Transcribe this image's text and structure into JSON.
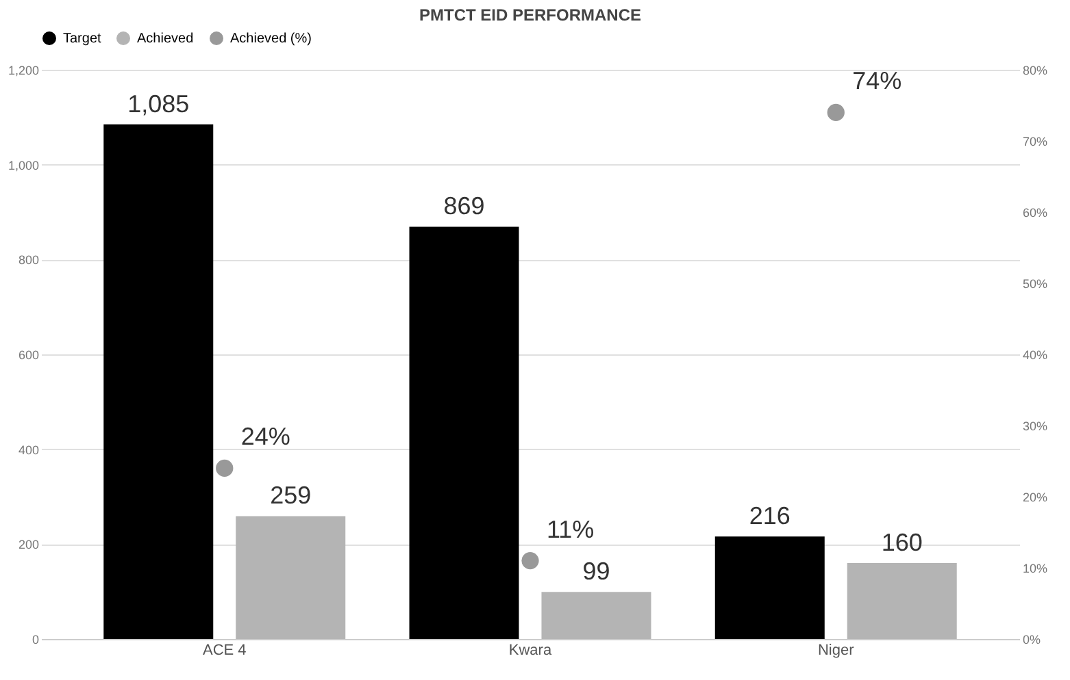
{
  "chart_data": {
    "type": "bar",
    "title": "PMTCT EID PERFORMANCE",
    "categories": [
      "ACE 4",
      "Kwara",
      "Niger"
    ],
    "series": [
      {
        "name": "Target",
        "color": "#000000",
        "values": [
          1085,
          869,
          216
        ],
        "value_labels": [
          "1,085",
          "869",
          "216"
        ]
      },
      {
        "name": "Achieved",
        "color": "#b4b4b4",
        "values": [
          259,
          99,
          160
        ],
        "value_labels": [
          "259",
          "99",
          "160"
        ]
      },
      {
        "name": "Achieved (%)",
        "type": "scatter",
        "axis": "y2",
        "color": "#999999",
        "values": [
          24,
          11,
          74
        ],
        "value_labels": [
          "24%",
          "11%",
          "74%"
        ]
      }
    ],
    "ylim": [
      0,
      1200
    ],
    "yticks": [
      0,
      {
        "value": 200,
        "label": "200"
      },
      400,
      600,
      800,
      {
        "value": 1000,
        "label": "1,000"
      },
      {
        "value": 1200,
        "label": "1,200"
      }
    ],
    "y2lim": [
      0,
      80
    ],
    "y2ticks": [
      {
        "value": 0,
        "label": "0%"
      },
      {
        "value": 10,
        "label": "10%"
      },
      {
        "value": 20,
        "label": "20%"
      },
      {
        "value": 30,
        "label": "30%"
      },
      {
        "value": 40,
        "label": "40%"
      },
      {
        "value": 50,
        "label": "50%"
      },
      {
        "value": 60,
        "label": "60%"
      },
      {
        "value": 70,
        "label": "70%"
      },
      {
        "value": 80,
        "label": "80%"
      }
    ],
    "grid": "y",
    "legend": "top",
    "marker": "circle"
  }
}
